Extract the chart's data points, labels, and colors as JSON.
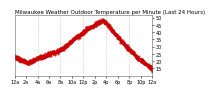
{
  "title": "Milwaukee Weather Outdoor Temperature per Minute (Last 24 Hours)",
  "title_fontsize": 4.0,
  "background_color": "#ffffff",
  "plot_bg_color": "#ffffff",
  "line_color": "#cc0000",
  "marker": ".",
  "markersize": 0.8,
  "ylim": [
    10,
    52
  ],
  "xlim": [
    0,
    1440
  ],
  "yticks": [
    15,
    20,
    25,
    30,
    35,
    40,
    45,
    50
  ],
  "ytick_labels": [
    "15",
    "20",
    "25",
    "30",
    "35",
    "40",
    "45",
    "50"
  ],
  "xtick_positions": [
    0,
    120,
    240,
    360,
    480,
    600,
    720,
    840,
    960,
    1080,
    1200,
    1320,
    1440
  ],
  "xtick_labels": [
    "12a",
    "2a",
    "4a",
    "6a",
    "8a",
    "10a",
    "12p",
    "2p",
    "4p",
    "6p",
    "8p",
    "10p",
    "12a"
  ],
  "tick_fontsize": 3.5,
  "grid_color": "#999999",
  "grid_linewidth": 0.4,
  "vgrid_positions": [
    240,
    480,
    720,
    960,
    1200
  ],
  "temperature_profile": {
    "times": [
      0,
      30,
      60,
      90,
      120,
      150,
      180,
      210,
      240,
      270,
      300,
      330,
      360,
      390,
      420,
      450,
      480,
      510,
      540,
      570,
      600,
      630,
      660,
      700,
      720,
      750,
      780,
      810,
      840,
      860,
      880,
      900,
      920,
      940,
      960,
      980,
      1000,
      1020,
      1050,
      1080,
      1110,
      1140,
      1170,
      1200,
      1230,
      1260,
      1290,
      1320,
      1350,
      1380,
      1410,
      1440
    ],
    "temps": [
      23,
      22,
      21,
      20,
      19,
      19,
      20,
      21,
      22,
      23,
      23,
      24,
      25,
      26,
      26,
      27,
      28,
      29,
      31,
      32,
      34,
      36,
      37,
      39,
      40,
      42,
      43,
      44,
      45,
      46,
      47,
      47,
      48,
      47,
      46,
      44,
      43,
      41,
      39,
      37,
      34,
      32,
      30,
      28,
      26,
      24,
      22,
      21,
      19,
      18,
      16,
      14
    ]
  }
}
